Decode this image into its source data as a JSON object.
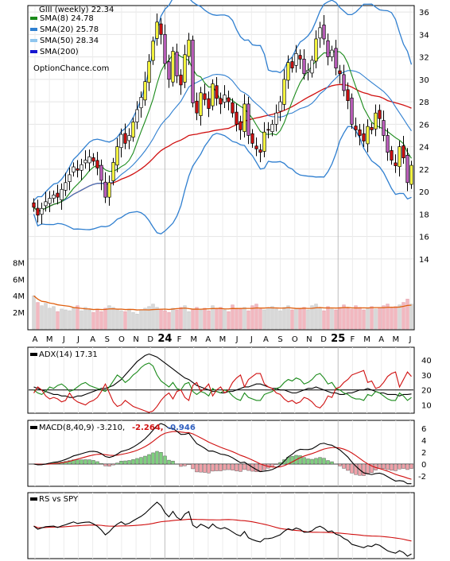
{
  "chart_data": [
    {
      "type": "candlestick",
      "title": "GIII (weekly) 22.34",
      "watermark": "OptionChance.com",
      "legend": [
        {
          "label": "SMA(8) 24.78",
          "color": "#1a8a1a"
        },
        {
          "label": "SMA(20) 25.78",
          "color": "#2f7fd0"
        },
        {
          "label": "SMA(50) 28.34",
          "color": "#8fc6ee"
        },
        {
          "label": "SMA(200)",
          "color": "#1515d0"
        }
      ],
      "legend_position": "top-left",
      "ylim": [
        13,
        36.5
      ],
      "y_ticks": [
        14,
        16,
        18,
        20,
        22,
        24,
        26,
        28,
        30,
        32,
        34,
        36
      ],
      "x_ticks": [
        "A",
        "M",
        "J",
        "J",
        "A",
        "S",
        "O",
        "N",
        "D",
        "24",
        "F",
        "M",
        "A",
        "M",
        "J",
        "J",
        "A",
        "S",
        "O",
        "N",
        "D",
        "25",
        "F",
        "M",
        "A",
        "M",
        "J"
      ],
      "close": [
        18.6,
        17.9,
        18.5,
        19.1,
        19.4,
        19.7,
        19.5,
        20.2,
        20.8,
        21.5,
        22.2,
        21.9,
        22.4,
        22.8,
        23.1,
        22.7,
        22.1,
        21.0,
        19.5,
        20.8,
        22.6,
        24.0,
        25.1,
        24.3,
        25.0,
        26.2,
        27.3,
        28.4,
        29.8,
        31.6,
        33.4,
        35.1,
        34.0,
        31.4,
        30.0,
        32.5,
        30.3,
        29.5,
        32.2,
        33.5,
        27.9,
        27.0,
        28.8,
        28.2,
        27.4,
        29.6,
        28.3,
        27.8,
        28.6,
        28.0,
        27.0,
        26.0,
        25.5,
        27.8,
        25.0,
        24.3,
        23.8,
        23.5,
        25.3,
        25.5,
        26.0,
        27.0,
        28.0,
        30.0,
        31.5,
        31.0,
        32.3,
        31.8,
        30.5,
        30.8,
        31.7,
        33.6,
        34.6,
        33.6,
        32.0,
        32.6,
        31.0,
        30.5,
        29.0,
        28.1,
        26.0,
        25.5,
        25.0,
        24.5,
        25.8,
        25.5,
        27.0,
        26.5,
        25.0,
        23.5,
        22.8,
        22.3,
        24.0,
        23.0,
        20.8,
        22.34
      ],
      "volume_millions": [
        4.0,
        3.2,
        2.8,
        3.1,
        2.5,
        2.7,
        2.1,
        2.4,
        2.3,
        2.2,
        2.5,
        2.8,
        2.2,
        2.6,
        2.3,
        2.0,
        2.4,
        2.1,
        2.5,
        2.8,
        2.6,
        2.4,
        2.2,
        2.1,
        2.4,
        2.0,
        1.8,
        2.3,
        2.5,
        2.7,
        3.0,
        2.6,
        2.4,
        2.2,
        2.0,
        2.5,
        2.3,
        2.6,
        2.8,
        2.1,
        2.4,
        2.6,
        2.3,
        2.5,
        2.2,
        2.8,
        2.4,
        2.6,
        2.3,
        2.1,
        2.9,
        2.5,
        2.4,
        2.6,
        2.2,
        2.8,
        3.0,
        2.4,
        2.3,
        2.5,
        2.7,
        2.4,
        2.2,
        2.6,
        2.8,
        2.3,
        2.5,
        2.4,
        2.6,
        2.3,
        2.8,
        3.0,
        2.5,
        2.2,
        2.7,
        2.4,
        2.3,
        2.6,
        2.9,
        2.5,
        2.4,
        2.8,
        2.6,
        2.3,
        2.5,
        2.7,
        2.4,
        2.6,
        2.8,
        3.0,
        2.5,
        2.7,
        2.9,
        3.2,
        3.6,
        3.0
      ],
      "volume_ticks": [
        "2M",
        "4M",
        "6M",
        "8M"
      ]
    },
    {
      "type": "line",
      "title": "ADX(14) 17.31",
      "ylim": [
        5,
        48
      ],
      "y_ticks": [
        10,
        20,
        30,
        40
      ],
      "series": [
        {
          "name": "ADX(14)",
          "color": "#000000",
          "values": [
            22,
            21,
            20,
            19,
            18,
            17,
            17,
            16,
            16,
            15,
            15,
            16,
            16,
            17,
            18,
            19,
            20,
            21,
            21,
            22,
            23,
            25,
            27,
            30,
            33,
            36,
            39,
            41,
            43,
            44,
            43,
            42,
            40,
            38,
            36,
            34,
            32,
            30,
            28,
            27,
            25,
            23,
            22,
            21,
            20,
            19,
            19,
            18,
            18,
            19,
            19,
            20,
            21,
            22,
            22,
            23,
            24,
            24,
            23,
            22,
            21,
            21,
            20,
            20,
            19,
            18,
            18,
            19,
            20,
            21,
            21,
            22,
            21,
            20,
            19,
            18,
            18,
            17,
            17,
            18,
            18,
            19,
            20,
            20,
            21,
            20,
            19,
            18,
            18,
            17,
            17,
            17,
            16,
            17,
            17,
            17.31
          ]
        },
        {
          "name": "+DI",
          "color": "#1a8a1a",
          "values": [
            20,
            18,
            17,
            19,
            22,
            21,
            23,
            24,
            22,
            19,
            20,
            22,
            24,
            25,
            23,
            22,
            21,
            20,
            19,
            22,
            26,
            30,
            28,
            25,
            27,
            30,
            32,
            35,
            37,
            38,
            36,
            30,
            26,
            24,
            22,
            25,
            21,
            20,
            24,
            25,
            19,
            17,
            19,
            18,
            16,
            21,
            19,
            18,
            20,
            19,
            16,
            14,
            13,
            18,
            15,
            14,
            13,
            13,
            17,
            18,
            19,
            21,
            22,
            25,
            27,
            26,
            28,
            27,
            24,
            25,
            27,
            30,
            31,
            28,
            24,
            25,
            21,
            20,
            18,
            17,
            15,
            14,
            14,
            13,
            17,
            16,
            19,
            18,
            16,
            14,
            13,
            13,
            18,
            16,
            13,
            15
          ]
        },
        {
          "name": "-DI",
          "color": "#d01010",
          "values": [
            18,
            22,
            20,
            16,
            14,
            15,
            14,
            12,
            13,
            18,
            14,
            12,
            11,
            10,
            12,
            13,
            15,
            19,
            24,
            18,
            12,
            9,
            10,
            13,
            11,
            9,
            8,
            7,
            6,
            5,
            6,
            9,
            13,
            16,
            18,
            14,
            19,
            20,
            15,
            13,
            23,
            25,
            19,
            21,
            24,
            16,
            20,
            22,
            18,
            20,
            25,
            28,
            30,
            22,
            27,
            29,
            31,
            31,
            24,
            22,
            21,
            18,
            17,
            14,
            12,
            13,
            11,
            12,
            15,
            14,
            12,
            9,
            8,
            11,
            16,
            15,
            21,
            22,
            25,
            27,
            30,
            31,
            32,
            33,
            25,
            26,
            21,
            22,
            25,
            29,
            31,
            32,
            22,
            27,
            32,
            29
          ]
        }
      ]
    },
    {
      "type": "line",
      "title": "MACD(8,40,9) -3.210,",
      "value_labels": [
        {
          "text": "-2.264,",
          "color": "#d01010"
        },
        {
          "text": "-0.946",
          "color": "#2f5fc0"
        }
      ],
      "ylim": [
        -3.6,
        7.2
      ],
      "y_ticks": [
        -2,
        0,
        2,
        4,
        6
      ],
      "series": [
        {
          "name": "MACD",
          "color": "#000000"
        },
        {
          "name": "Signal",
          "color": "#d01010"
        },
        {
          "name": "Histogram",
          "color": "#7fd07f"
        }
      ]
    },
    {
      "type": "line",
      "title": "RS vs SPY",
      "series": [
        {
          "name": "RS vs SPY",
          "color": "#000000"
        },
        {
          "name": "RS SMA",
          "color": "#d01010"
        }
      ]
    }
  ]
}
